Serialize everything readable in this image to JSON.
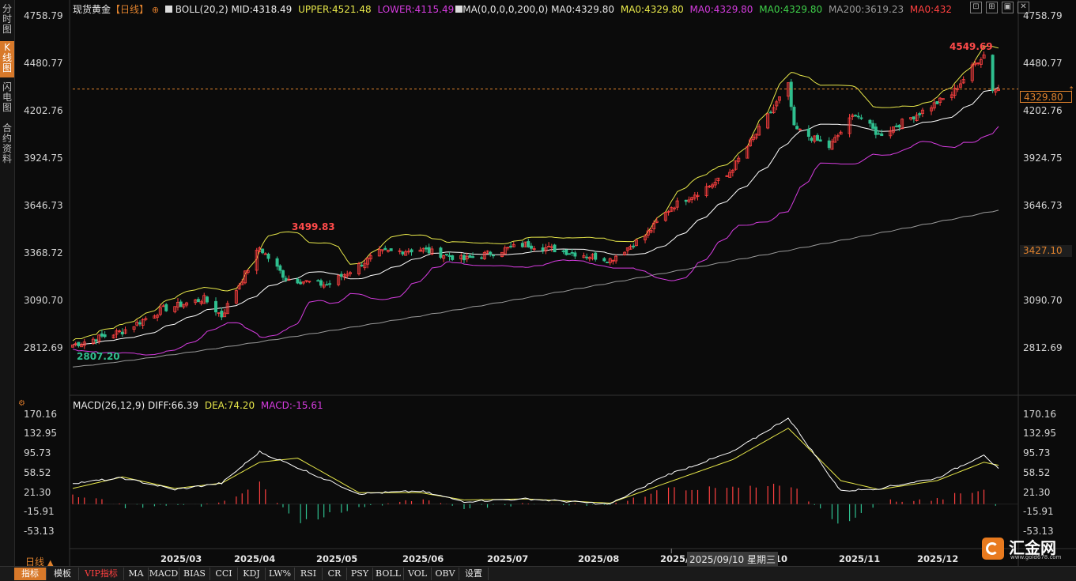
{
  "sidebar": {
    "tabs": [
      {
        "label": "分时图",
        "active": false
      },
      {
        "label": "K线图",
        "active": true
      },
      {
        "label": "闪电图",
        "active": false
      },
      {
        "label": "合约资料",
        "active": false
      }
    ]
  },
  "header": {
    "symbol": "现货黄金",
    "period": "【日线】",
    "boll": "BOLL(20,2)",
    "boll_mid": "MID:4318.49",
    "boll_upper": "UPPER:4521.48",
    "boll_lower": "LOWER:4115.49",
    "ma_params": "MA(0,0,0,0,200,0)",
    "ma0_a": "MA0:4329.80",
    "ma0_b": "MA0:4329.80",
    "ma0_c": "MA0:4329.80",
    "ma0_d": "MA0:4329.80",
    "ma200": "MA200:3619.23",
    "ma0_e": "MA0:432"
  },
  "price_axis": [
    "4758.79",
    "4480.77",
    "4202.76",
    "3924.75",
    "3646.73",
    "3368.72",
    "3090.70",
    "2812.69"
  ],
  "current_price": "4329.80",
  "ma200_price": "3427.10",
  "annotations": {
    "high": "4549.69",
    "low": "2807.20",
    "high2": "3499.83"
  },
  "macd_header": {
    "title": "MACD(26,12,9)",
    "diff": "DIFF:66.39",
    "dea": "DEA:74.20",
    "macd": "MACD:-15.61"
  },
  "macd_axis": [
    "170.16",
    "132.95",
    "95.73",
    "58.52",
    "21.30",
    "-15.91",
    "-53.13"
  ],
  "x_axis": [
    "2025/03",
    "2025/04",
    "2025/05",
    "2025/06",
    "2025/07",
    "2025/08",
    "2025/",
    "10",
    "2025/11",
    "2025/12"
  ],
  "crosshair_date": "2025/09/10 星期三",
  "period_label": "日线",
  "bottom_tabs": [
    "指标",
    "模板",
    "VIP指标",
    "MA",
    "MACD",
    "BIAS",
    "CCI",
    "KDJ",
    "LW%",
    "RSI",
    "CR",
    "PSY",
    "BOLL",
    "VOL",
    "OBV",
    "设置"
  ],
  "logo": {
    "text": "汇金网",
    "url": "www.gold678.com"
  },
  "colors": {
    "up": "#ff4040",
    "down": "#2fbf8f",
    "upper": "#e8e84a",
    "lower": "#d63ce0",
    "mid": "#ffffff",
    "ma200": "#9a9a9a",
    "accent": "#d8792a"
  },
  "chart_data": {
    "type": "candlestick",
    "ylim": [
      2700,
      4800
    ],
    "close_anchors": [
      {
        "date": "2025-02-17",
        "close": 2830
      },
      {
        "date": "2025-03-06",
        "close": 2910
      },
      {
        "date": "2025-03-20",
        "close": 3040
      },
      {
        "date": "2025-04-03",
        "close": 3100
      },
      {
        "date": "2025-04-09",
        "close": 3000
      },
      {
        "date": "2025-04-22",
        "close": 3400
      },
      {
        "date": "2025-05-01",
        "close": 3220
      },
      {
        "date": "2025-05-15",
        "close": 3180
      },
      {
        "date": "2025-06-02",
        "close": 3370
      },
      {
        "date": "2025-06-16",
        "close": 3390
      },
      {
        "date": "2025-07-01",
        "close": 3330
      },
      {
        "date": "2025-07-22",
        "close": 3420
      },
      {
        "date": "2025-08-20",
        "close": 3330
      },
      {
        "date": "2025-09-01",
        "close": 3470
      },
      {
        "date": "2025-09-10",
        "close": 3640
      },
      {
        "date": "2025-09-29",
        "close": 3820
      },
      {
        "date": "2025-10-08",
        "close": 4040
      },
      {
        "date": "2025-10-20",
        "close": 4350
      },
      {
        "date": "2025-10-22",
        "close": 4100
      },
      {
        "date": "2025-11-03",
        "close": 3990
      },
      {
        "date": "2025-11-12",
        "close": 4190
      },
      {
        "date": "2025-11-20",
        "close": 4060
      },
      {
        "date": "2025-12-05",
        "close": 4200
      },
      {
        "date": "2025-12-15",
        "close": 4300
      },
      {
        "date": "2025-12-24",
        "close": 4500
      },
      {
        "date": "2025-12-26",
        "close": 4530
      },
      {
        "date": "2025-12-29",
        "close": 4330
      },
      {
        "date": "2025-12-31",
        "close": 4330
      }
    ],
    "ma200_range": [
      2700,
      3619.23
    ],
    "macd_ylim": [
      -80,
      180
    ],
    "diff_anchors": [
      {
        "date": "2025-02-17",
        "v": 40
      },
      {
        "date": "2025-03-06",
        "v": 50
      },
      {
        "date": "2025-03-24",
        "v": 28
      },
      {
        "date": "2025-04-09",
        "v": 40
      },
      {
        "date": "2025-04-22",
        "v": 100
      },
      {
        "date": "2025-05-05",
        "v": 70
      },
      {
        "date": "2025-05-26",
        "v": 20
      },
      {
        "date": "2025-06-16",
        "v": 25
      },
      {
        "date": "2025-07-01",
        "v": 5
      },
      {
        "date": "2025-07-22",
        "v": 10
      },
      {
        "date": "2025-08-20",
        "v": 0
      },
      {
        "date": "2025-09-08",
        "v": 55
      },
      {
        "date": "2025-10-01",
        "v": 100
      },
      {
        "date": "2025-10-20",
        "v": 165
      },
      {
        "date": "2025-11-07",
        "v": 25
      },
      {
        "date": "2025-11-20",
        "v": 30
      },
      {
        "date": "2025-12-10",
        "v": 50
      },
      {
        "date": "2025-12-26",
        "v": 95
      },
      {
        "date": "2025-12-31",
        "v": 66.39
      }
    ],
    "dea_anchors": [
      {
        "date": "2025-02-17",
        "v": 30
      },
      {
        "date": "2025-03-06",
        "v": 52
      },
      {
        "date": "2025-03-24",
        "v": 30
      },
      {
        "date": "2025-04-09",
        "v": 40
      },
      {
        "date": "2025-04-22",
        "v": 80
      },
      {
        "date": "2025-05-05",
        "v": 88
      },
      {
        "date": "2025-05-26",
        "v": 22
      },
      {
        "date": "2025-06-16",
        "v": 22
      },
      {
        "date": "2025-07-01",
        "v": 8
      },
      {
        "date": "2025-07-22",
        "v": 10
      },
      {
        "date": "2025-08-20",
        "v": 2
      },
      {
        "date": "2025-09-08",
        "v": 40
      },
      {
        "date": "2025-10-01",
        "v": 85
      },
      {
        "date": "2025-10-20",
        "v": 145
      },
      {
        "date": "2025-11-07",
        "v": 45
      },
      {
        "date": "2025-11-20",
        "v": 28
      },
      {
        "date": "2025-12-10",
        "v": 45
      },
      {
        "date": "2025-12-26",
        "v": 80
      },
      {
        "date": "2025-12-31",
        "v": 74.2
      }
    ]
  }
}
